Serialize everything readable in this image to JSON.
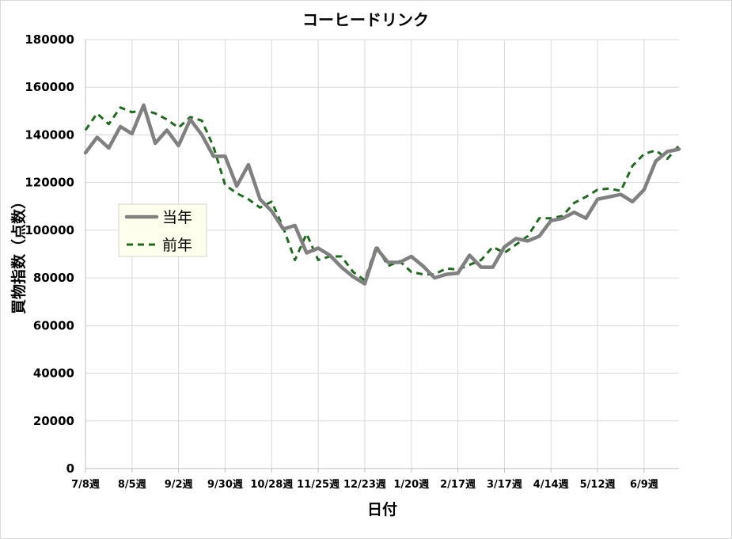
{
  "chart_data": {
    "type": "line",
    "title": "コーヒードリンク",
    "xlabel": "日付",
    "ylabel": "買物指数（点数）",
    "ylim": [
      0,
      180000
    ],
    "yticks": [
      "0",
      "20000",
      "40000",
      "60000",
      "80000",
      "100000",
      "120000",
      "140000",
      "160000",
      "180000"
    ],
    "xtick_labels": [
      "7/8週",
      "8/5週",
      "9/2週",
      "9/30週",
      "10/28週",
      "11/25週",
      "12/23週",
      "1/20週",
      "2/17週",
      "3/17週",
      "4/14週",
      "5/12週",
      "6/9週"
    ],
    "grid": true,
    "legend_position": "left-middle",
    "series": [
      {
        "name": "当年",
        "color": "#808080",
        "style": "solid",
        "values": [
          132500,
          139000,
          134500,
          143500,
          140500,
          152500,
          136500,
          142000,
          135500,
          146500,
          140000,
          131000,
          131000,
          118500,
          127500,
          113000,
          108000,
          100500,
          102000,
          90500,
          92500,
          89500,
          84500,
          80500,
          77500,
          92500,
          86500,
          86500,
          89000,
          85000,
          80000,
          81500,
          82000,
          89500,
          84500,
          84500,
          93000,
          96500,
          95500,
          97500,
          104000,
          105000,
          107500,
          105000,
          113000,
          114000,
          115000,
          112000,
          117000,
          129000,
          133000,
          134000
        ]
      },
      {
        "name": "前年",
        "color": "#1e6b1e",
        "style": "dashed",
        "values": [
          142000,
          149000,
          144500,
          151500,
          149500,
          150500,
          149000,
          146500,
          143000,
          147500,
          146000,
          135000,
          119000,
          115500,
          113000,
          109500,
          112000,
          101000,
          87500,
          98500,
          87500,
          89000,
          89000,
          82500,
          79000,
          93500,
          85000,
          87000,
          82500,
          81500,
          81500,
          84000,
          83500,
          85500,
          87500,
          93000,
          90500,
          94000,
          97500,
          105000,
          105000,
          106000,
          111500,
          114000,
          117000,
          117500,
          116500,
          127000,
          132000,
          133500,
          130000,
          135500
        ]
      }
    ]
  }
}
